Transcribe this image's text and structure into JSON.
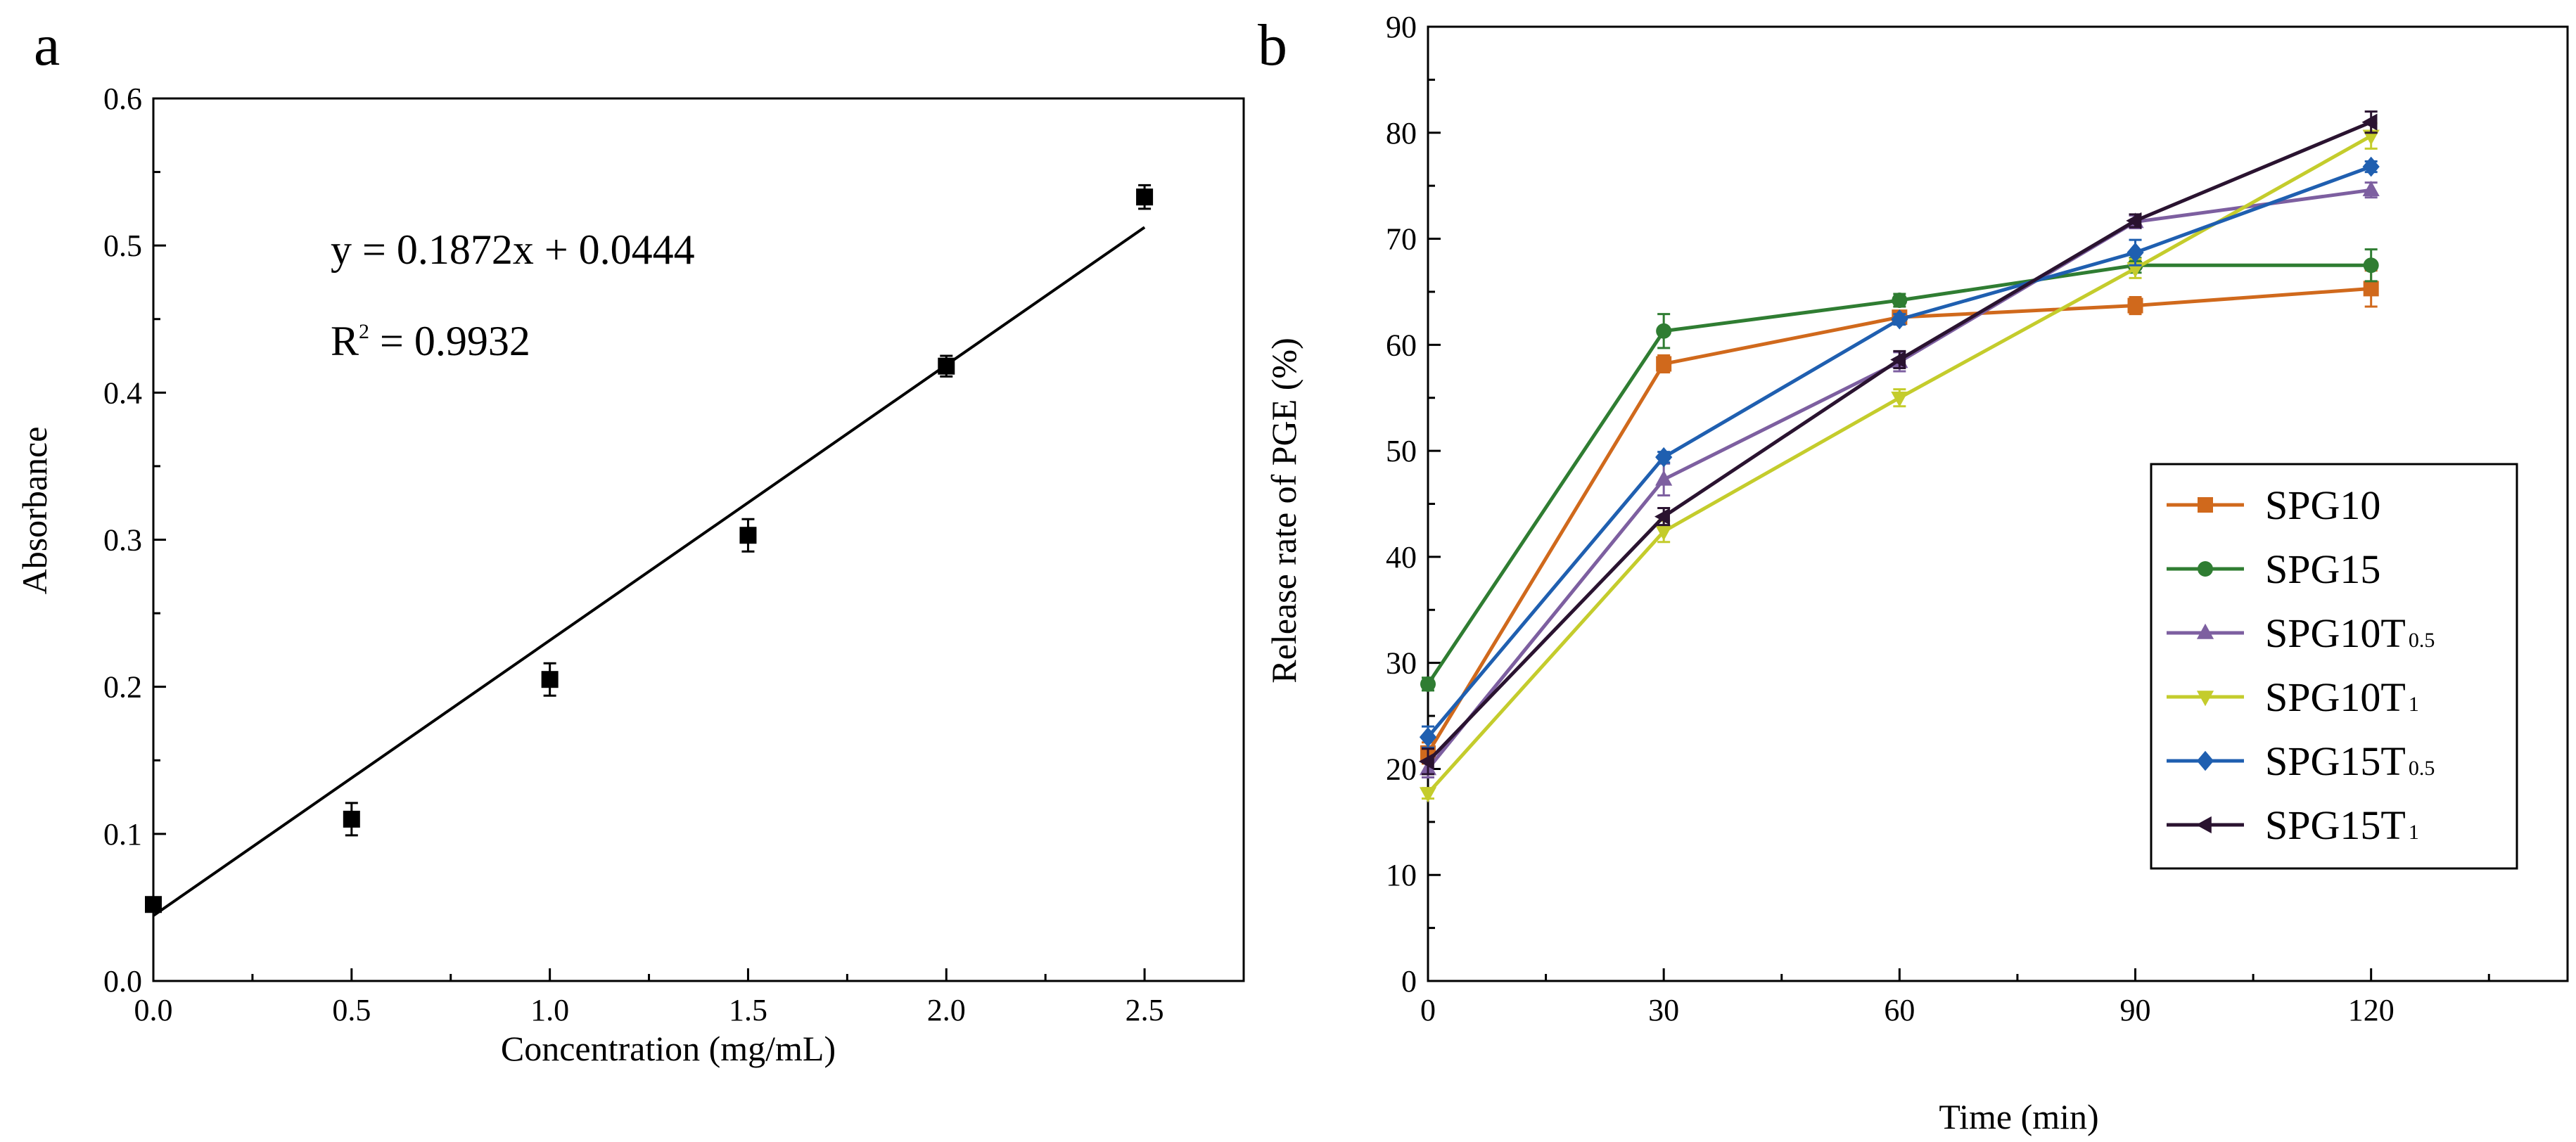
{
  "chart_data": [
    {
      "panel_label": "a",
      "type": "scatter",
      "xlabel": "Concentration (mg/mL)",
      "ylabel": "Absorbance",
      "xlim": [
        0,
        2.75
      ],
      "ylim": [
        0,
        0.6
      ],
      "xticks": [
        "0.0",
        "0.5",
        "1.0",
        "1.5",
        "2.0",
        "2.5"
      ],
      "yticks": [
        "0.0",
        "0.1",
        "0.2",
        "0.3",
        "0.4",
        "0.5",
        "0.6"
      ],
      "points": [
        {
          "x": 0.0,
          "y": 0.052,
          "err": 0.003
        },
        {
          "x": 0.5,
          "y": 0.11,
          "err": 0.011
        },
        {
          "x": 1.0,
          "y": 0.205,
          "err": 0.011
        },
        {
          "x": 1.5,
          "y": 0.303,
          "err": 0.011
        },
        {
          "x": 2.0,
          "y": 0.418,
          "err": 0.007
        },
        {
          "x": 2.5,
          "y": 0.533,
          "err": 0.008
        }
      ],
      "fit": {
        "slope": 0.1872,
        "intercept": 0.0444,
        "x_range": [
          0,
          2.5
        ]
      },
      "equation": "y = 0.1872x + 0.0444",
      "r2": {
        "prefix": "R",
        "sup": "2",
        "rest": " = 0.9932"
      }
    },
    {
      "panel_label": "b",
      "type": "line",
      "xlabel": "Time (min)",
      "ylabel": "Release rate of PGE (%)",
      "xlim": [
        0,
        145
      ],
      "ylim": [
        0,
        90
      ],
      "xticks": [
        "0",
        "30",
        "60",
        "90",
        "120"
      ],
      "yticks": [
        "0",
        "10",
        "20",
        "30",
        "40",
        "50",
        "60",
        "70",
        "80",
        "90"
      ],
      "x": [
        0,
        30,
        60,
        90,
        120
      ],
      "legend_position": "bottom-right",
      "series": [
        {
          "name": "SPG10",
          "base": "SPG10",
          "sub": "",
          "color": "#d0691c",
          "marker": "square",
          "values": [
            21.5,
            58.2,
            62.6,
            63.7,
            65.3
          ],
          "err": [
            1.0,
            0.8,
            0.6,
            0.8,
            1.7
          ]
        },
        {
          "name": "SPG15",
          "base": "SPG15",
          "sub": "",
          "color": "#2f7d32",
          "marker": "circle",
          "values": [
            28.0,
            61.3,
            64.2,
            67.5,
            67.5
          ],
          "err": [
            0.6,
            1.6,
            0.6,
            0.7,
            1.5
          ]
        },
        {
          "name": "SPG10T0.5",
          "base": "SPG10T",
          "sub": "0.5",
          "color": "#7d5fa0",
          "marker": "triangle-up",
          "values": [
            20.0,
            47.3,
            58.4,
            71.6,
            74.6
          ],
          "err": [
            0.8,
            1.5,
            0.9,
            0.6,
            0.7
          ]
        },
        {
          "name": "SPG10T1",
          "base": "SPG10T",
          "sub": "1",
          "color": "#c4cc2c",
          "marker": "triangle-down",
          "values": [
            17.7,
            42.4,
            55.0,
            67.2,
            79.7
          ],
          "err": [
            0.5,
            1.0,
            0.8,
            0.9,
            1.2
          ]
        },
        {
          "name": "SPG15T0.5",
          "base": "SPG15T",
          "sub": "0.5",
          "color": "#1f5fb0",
          "marker": "diamond",
          "values": [
            23.0,
            49.4,
            62.4,
            68.7,
            76.8
          ],
          "err": [
            1.0,
            0.5,
            0.5,
            1.2,
            0.5
          ]
        },
        {
          "name": "SPG15T1",
          "base": "SPG15T",
          "sub": "1",
          "color": "#2a1330",
          "marker": "triangle-left",
          "values": [
            20.7,
            43.8,
            58.6,
            71.7,
            81.0
          ],
          "err": [
            1.2,
            0.8,
            0.8,
            0.6,
            1.0
          ]
        }
      ]
    }
  ]
}
